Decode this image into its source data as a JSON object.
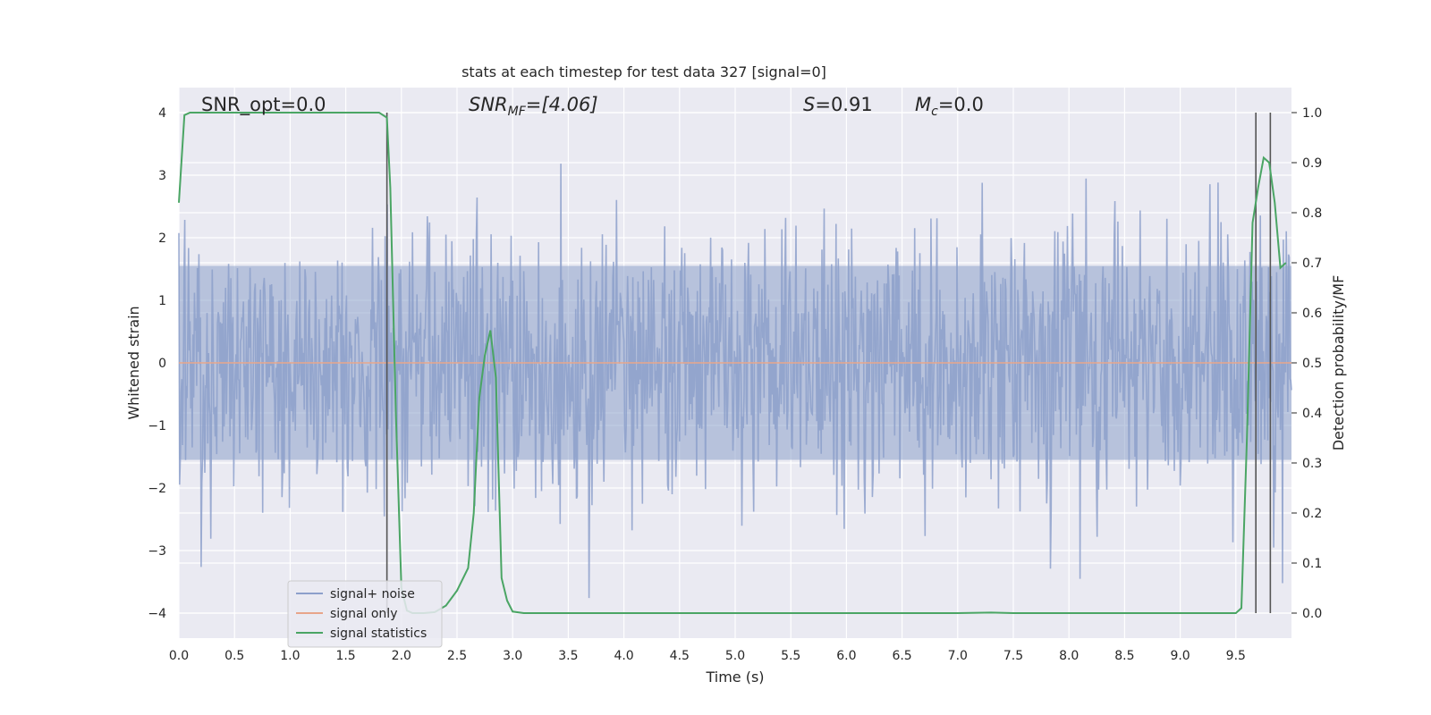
{
  "chart_data": {
    "type": "line",
    "title": "stats at each timestep for test data 327 [signal=0]",
    "xlabel": "Time (s)",
    "ylabel_left": "Whitened strain",
    "ylabel_right": "Detection probability/MF",
    "xlim": [
      0.0,
      10.0
    ],
    "ylim_left": [
      -4.4,
      4.4
    ],
    "ylim_right": [
      -0.05,
      1.05
    ],
    "xticks": [
      "0.0",
      "0.5",
      "1.0",
      "1.5",
      "2.0",
      "2.5",
      "3.0",
      "3.5",
      "4.0",
      "4.5",
      "5.0",
      "5.5",
      "6.0",
      "6.5",
      "7.0",
      "7.5",
      "8.0",
      "8.5",
      "9.0",
      "9.5"
    ],
    "xtick_values": [
      0.0,
      0.5,
      1.0,
      1.5,
      2.0,
      2.5,
      3.0,
      3.5,
      4.0,
      4.5,
      5.0,
      5.5,
      6.0,
      6.5,
      7.0,
      7.5,
      8.0,
      8.5,
      9.0,
      9.5
    ],
    "yticks_left": [
      "−4",
      "−3",
      "−2",
      "−1",
      "0",
      "1",
      "2",
      "3",
      "4"
    ],
    "ytick_values_left": [
      -4,
      -3,
      -2,
      -1,
      0,
      1,
      2,
      3,
      4
    ],
    "yticks_right": [
      "0.0",
      "0.1",
      "0.2",
      "0.3",
      "0.4",
      "0.5",
      "0.6",
      "0.7",
      "0.8",
      "0.9",
      "1.0"
    ],
    "ytick_values_right": [
      0.0,
      0.1,
      0.2,
      0.3,
      0.4,
      0.5,
      0.6,
      0.7,
      0.8,
      0.9,
      1.0
    ],
    "grid": true,
    "legend_position": "lower-left",
    "annotations": {
      "snr_opt": "SNR_opt=0.0",
      "snr_mf_main": "SNR",
      "snr_mf_sub": "MF",
      "snr_mf_value": "=[4.06]",
      "s_main": "S",
      "s_value": "=0.91",
      "mc_main": "M",
      "mc_sub": "c",
      "mc_value": "=0.0"
    },
    "series": [
      {
        "name": "signal+ noise",
        "color": "#8da0cb",
        "axis": "left",
        "kind": "noise",
        "description_values": {
          "typical_amplitude": 1.6,
          "max_amplitude": 4.0
        }
      },
      {
        "name": "signal only",
        "color": "#e8a58a",
        "axis": "left",
        "x": [
          0.0,
          10.0
        ],
        "y": [
          0.0,
          0.0
        ]
      },
      {
        "name": "signal statistics",
        "color": "#4aa564",
        "axis": "right",
        "x": [
          0.0,
          0.05,
          0.1,
          0.2,
          0.5,
          1.0,
          1.5,
          1.8,
          1.87,
          1.9,
          1.95,
          2.0,
          2.05,
          2.1,
          2.2,
          2.3,
          2.4,
          2.5,
          2.6,
          2.65,
          2.7,
          2.75,
          2.8,
          2.85,
          2.9,
          2.95,
          3.0,
          3.1,
          3.5,
          4.0,
          5.0,
          6.0,
          7.0,
          7.3,
          7.5,
          8.0,
          9.0,
          9.5,
          9.55,
          9.6,
          9.65,
          9.7,
          9.75,
          9.8,
          9.85,
          9.9,
          9.95
        ],
        "y": [
          0.82,
          0.995,
          1.0,
          1.0,
          1.0,
          1.0,
          1.0,
          1.0,
          0.99,
          0.85,
          0.4,
          0.05,
          0.005,
          0.0,
          0.0,
          0.002,
          0.015,
          0.045,
          0.09,
          0.2,
          0.43,
          0.515,
          0.565,
          0.47,
          0.07,
          0.025,
          0.003,
          0.0,
          0.0,
          0.0,
          0.0,
          0.0,
          0.0,
          0.001,
          0.0,
          0.0,
          0.0,
          0.0,
          0.01,
          0.35,
          0.78,
          0.85,
          0.91,
          0.9,
          0.82,
          0.69,
          0.7
        ]
      }
    ],
    "vertical_markers": [
      1.87,
      9.68,
      9.81
    ]
  }
}
